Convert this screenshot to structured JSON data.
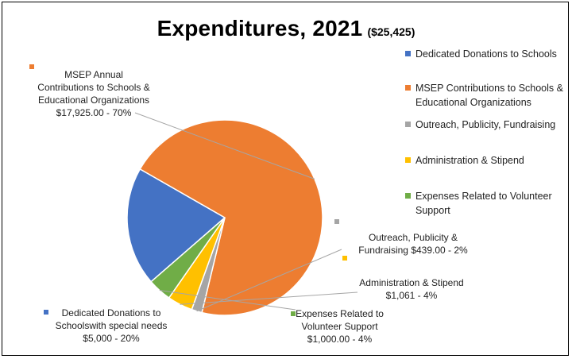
{
  "chart_data": {
    "type": "pie",
    "title": "Expenditures, 2021",
    "subtitle": "($25,425)",
    "slices": [
      {
        "name": "Dedicated Donations to Schools",
        "value": 5000,
        "percent": 20,
        "color": "#4472C4",
        "label_lines": [
          "Dedicated Donations to",
          "Schoolswith special needs",
          "$5,000  - 20%"
        ]
      },
      {
        "name": "MSEP Contributions to Schools & Educational Organizations",
        "value": 17925,
        "percent": 70,
        "color": "#ED7D31",
        "label_lines": [
          "MSEP Annual",
          "Contributions to Schools &",
          "Educational Organizations",
          "$17,925.00  - 70%"
        ]
      },
      {
        "name": "Outreach, Publicity, Fundraising",
        "value": 439,
        "percent": 2,
        "color": "#A5A5A5",
        "label_lines": [
          "Outreach, Publicity &",
          "Fundraising $439.00 - 2%"
        ]
      },
      {
        "name": "Administration & Stipend",
        "value": 1061,
        "percent": 4,
        "color": "#FFC000",
        "label_lines": [
          "Administration & Stipend",
          "$1,061  - 4%"
        ]
      },
      {
        "name": "Expenses Related to Volunteer Support",
        "value": 1000,
        "percent": 4,
        "color": "#70AD47",
        "label_lines": [
          "Expenses Related to",
          "Volunteer Support",
          "$1,000.00  - 4%"
        ]
      }
    ],
    "legend_position": "right",
    "legend": [
      [
        "Dedicated Donations to Schools"
      ],
      [
        "MSEP Contributions to Schools &",
        "Educational Organizations"
      ],
      [
        "Outreach, Publicity, Fundraising"
      ],
      [
        "Administration & Stipend"
      ],
      [
        "Expenses Related to Volunteer",
        "Support"
      ]
    ]
  }
}
